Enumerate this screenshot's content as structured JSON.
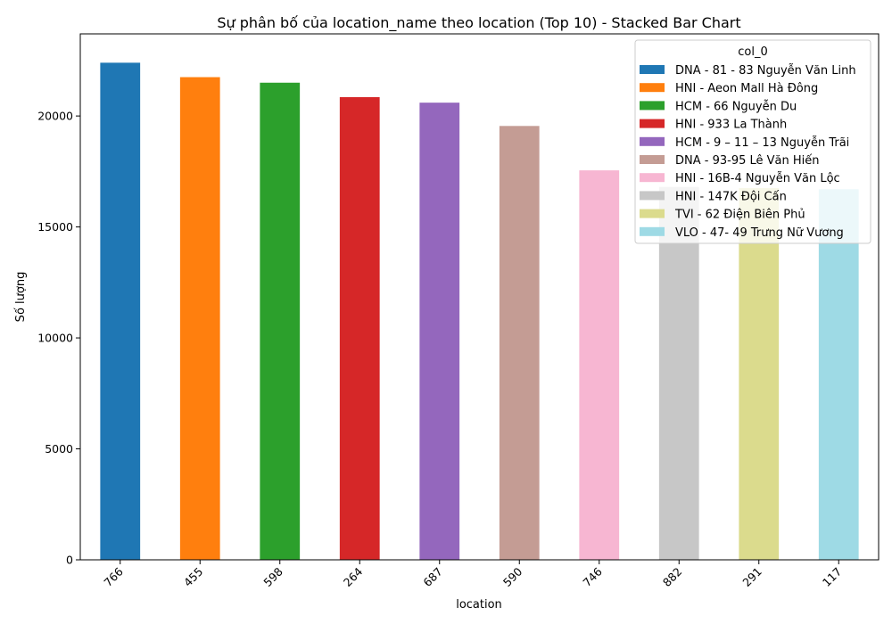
{
  "chart_data": {
    "type": "bar",
    "stacked": true,
    "title": "Sự phân bố của location_name theo location (Top 10) - Stacked Bar Chart",
    "xlabel": "location",
    "ylabel": "Số lượng",
    "ylim": [
      0,
      23700
    ],
    "yticks": [
      0,
      5000,
      10000,
      15000,
      20000
    ],
    "grid": false,
    "legend_placement": "top-right",
    "legend_title": "col_0",
    "categories": [
      "766",
      "455",
      "598",
      "264",
      "687",
      "590",
      "746",
      "882",
      "291",
      "117"
    ],
    "series": [
      {
        "name": "DNA - 81 - 83 Nguyễn Văn Linh",
        "color": "#1f77b4",
        "values": [
          22400,
          0,
          0,
          0,
          0,
          0,
          0,
          0,
          0,
          0
        ]
      },
      {
        "name": "HNI - Aeon Mall Hà Đông",
        "color": "#ff7f0e",
        "values": [
          0,
          21750,
          0,
          0,
          0,
          0,
          0,
          0,
          0,
          0
        ]
      },
      {
        "name": "HCM - 66 Nguyễn Du",
        "color": "#2ca02c",
        "values": [
          0,
          0,
          21500,
          0,
          0,
          0,
          0,
          0,
          0,
          0
        ]
      },
      {
        "name": "HNI - 933 La Thành",
        "color": "#d62728",
        "values": [
          0,
          0,
          0,
          20850,
          0,
          0,
          0,
          0,
          0,
          0
        ]
      },
      {
        "name": "HCM - 9 – 11 – 13 Nguyễn Trãi",
        "color": "#9467bd",
        "values": [
          0,
          0,
          0,
          0,
          20600,
          0,
          0,
          0,
          0,
          0
        ]
      },
      {
        "name": "DNA - 93-95 Lê Văn Hiến",
        "color": "#c49c94",
        "values": [
          0,
          0,
          0,
          0,
          0,
          19550,
          0,
          0,
          0,
          0
        ]
      },
      {
        "name": "HNI - 16B-4 Nguyễn Văn Lộc",
        "color": "#f7b6d2",
        "values": [
          0,
          0,
          0,
          0,
          0,
          0,
          17550,
          0,
          0,
          0
        ]
      },
      {
        "name": "HNI - 147K Đội Cấn",
        "color": "#c7c7c7",
        "values": [
          0,
          0,
          0,
          0,
          0,
          0,
          0,
          16800,
          0,
          0
        ]
      },
      {
        "name": "TVI - 62 Điện Biên Phủ",
        "color": "#dbdb8d",
        "values": [
          0,
          0,
          0,
          0,
          0,
          0,
          0,
          0,
          16750,
          0
        ]
      },
      {
        "name": "VLO - 47- 49 Trưng Nữ Vương",
        "color": "#9edae5",
        "values": [
          0,
          0,
          0,
          0,
          0,
          0,
          0,
          0,
          0,
          16700
        ]
      }
    ]
  }
}
